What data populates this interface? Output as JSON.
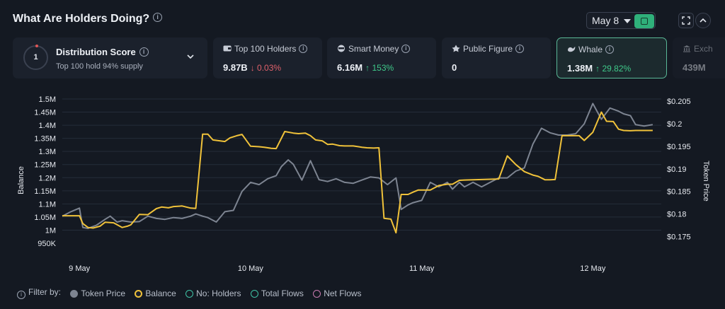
{
  "header": {
    "title": "What Are Holders Doing?",
    "date_label": "May 8"
  },
  "distribution": {
    "score": "1",
    "title": "Distribution Score",
    "subtitle": "Top 100 hold 94% supply"
  },
  "cards": [
    {
      "label": "Top 100 Holders",
      "value": "9.87B",
      "change": "↓ 0.03%",
      "direction": "down",
      "icon": "wallet-icon"
    },
    {
      "label": "Smart Money",
      "value": "6.16M",
      "change": "↑ 153%",
      "direction": "up",
      "icon": "smart-money-icon"
    },
    {
      "label": "Public Figure",
      "value": "0",
      "change": "",
      "direction": "",
      "icon": "public-figure-icon"
    },
    {
      "label": "Whale",
      "value": "1.38M",
      "change": "↑ 29.82%",
      "direction": "up",
      "icon": "whale-icon"
    },
    {
      "label": "Exch",
      "value": "439M",
      "change": "",
      "direction": "",
      "icon": "exchange-icon"
    }
  ],
  "legend": {
    "filter_label": "Filter by:",
    "items": [
      "Token Price",
      "Balance",
      "No: Holders",
      "Total Flows",
      "Net Flows"
    ]
  },
  "colors": {
    "token_price": "#7d8491",
    "balance": "#f0c23a",
    "accent_green": "#2fb07a",
    "up": "#3fca8a",
    "down": "#e0616b"
  },
  "chart_data": {
    "type": "line",
    "x_tick_labels": [
      "9 May",
      "10 May",
      "11 May",
      "12 May"
    ],
    "x_tick_positions": [
      0.5,
      10.5,
      20.5,
      30.5
    ],
    "x_range": [
      -0.5,
      34.5
    ],
    "ylabel_left": "Balance",
    "ylabel_right": "Token Price",
    "yticks_left": [
      "1.5M",
      "1.45M",
      "1.4M",
      "1.35M",
      "1.3M",
      "1.25M",
      "1.2M",
      "1.15M",
      "1.1M",
      "1.05M",
      "1M",
      "950K"
    ],
    "yticks_right": [
      "$0.205",
      "$0.2",
      "$0.195",
      "$0.19",
      "$0.185",
      "$0.18",
      "$0.175"
    ],
    "ylim_left": [
      950000,
      1500000
    ],
    "ylim_right": [
      0.1735,
      0.2055
    ],
    "series": [
      {
        "name": "Balance",
        "axis": "left",
        "x": [
          -0.5,
          0,
          0.5,
          0.7,
          1,
          1.3,
          1.7,
          2,
          2.5,
          3,
          3.3,
          3.5,
          4,
          4.5,
          5,
          5.3,
          5.7,
          6,
          6.5,
          7,
          7.3,
          7.7,
          8,
          8.3,
          9,
          9.3,
          9.7,
          10,
          10.5,
          11,
          11.3,
          11.7,
          12,
          12.5,
          13,
          13.3,
          13.7,
          14,
          14.3,
          14.7,
          15,
          15.3,
          15.7,
          16,
          16.5,
          17,
          17.3,
          17.7,
          18,
          18.3,
          18.7,
          19,
          19.3,
          19.7,
          20,
          20.3,
          20.7,
          21,
          21.5,
          22,
          22.3,
          22.7,
          23,
          23.5,
          24,
          24.5,
          25,
          25.5,
          26,
          26.5,
          27,
          27.3,
          27.7,
          28,
          28.3,
          28.7,
          29,
          29.3,
          29.7,
          30,
          30.5,
          31,
          31.3,
          31.7,
          32,
          32.3,
          32.7,
          33,
          33.5,
          34
        ],
        "y": [
          1055000,
          1055000,
          1055000,
          1025000,
          1010000,
          1008000,
          1015000,
          1030000,
          1028000,
          1010000,
          1015000,
          1020000,
          1060000,
          1059000,
          1082000,
          1088000,
          1085000,
          1090000,
          1092000,
          1084000,
          1083000,
          1366000,
          1366000,
          1344000,
          1338000,
          1352000,
          1360000,
          1365000,
          1320000,
          1318000,
          1316000,
          1312000,
          1311000,
          1376000,
          1370000,
          1368000,
          1370000,
          1360000,
          1344000,
          1340000,
          1327000,
          1328000,
          1322000,
          1321000,
          1321000,
          1316000,
          1314000,
          1313000,
          1314000,
          1045000,
          1042000,
          990000,
          1136000,
          1136000,
          1145000,
          1153000,
          1153000,
          1153000,
          1170000,
          1175000,
          1175000,
          1190000,
          1191000,
          1192000,
          1193000,
          1194000,
          1195000,
          1283000,
          1250000,
          1223000,
          1210000,
          1205000,
          1192000,
          1192000,
          1193000,
          1360000,
          1360000,
          1360000,
          1360000,
          1342000,
          1373000,
          1450000,
          1415000,
          1414000,
          1385000,
          1380000,
          1379000,
          1380000,
          1380000,
          1380000
        ]
      },
      {
        "name": "Token Price",
        "axis": "right",
        "x": [
          -0.5,
          0,
          0.5,
          0.7,
          1,
          1.5,
          2,
          2.3,
          2.7,
          3,
          3.5,
          4,
          4.5,
          5,
          5.5,
          6,
          6.5,
          7,
          7.3,
          7.7,
          8,
          8.5,
          9,
          9.5,
          10,
          10.5,
          11,
          11.5,
          12,
          12.3,
          12.7,
          13,
          13.5,
          14,
          14.5,
          15,
          15.5,
          16,
          16.5,
          17,
          17.5,
          18,
          18.5,
          19,
          19.3,
          19.7,
          20,
          20.5,
          21,
          21.5,
          22,
          22.3,
          22.7,
          23,
          23.5,
          24,
          24.5,
          25,
          25.5,
          26,
          26.5,
          27,
          27.5,
          28,
          28.5,
          29,
          29.5,
          30,
          30.5,
          31,
          31.5,
          32,
          32.3,
          32.7,
          33,
          33.5,
          34
        ],
        "y": [
          0.1795,
          0.1805,
          0.1813,
          0.177,
          0.1768,
          0.1775,
          0.1788,
          0.1795,
          0.1782,
          0.1785,
          0.1782,
          0.1783,
          0.1795,
          0.179,
          0.1788,
          0.1792,
          0.179,
          0.1795,
          0.18,
          0.1795,
          0.1792,
          0.1782,
          0.1805,
          0.1808,
          0.185,
          0.187,
          0.1865,
          0.1878,
          0.1885,
          0.1905,
          0.192,
          0.191,
          0.1875,
          0.1918,
          0.1876,
          0.1872,
          0.1878,
          0.187,
          0.1868,
          0.1875,
          0.1882,
          0.188,
          0.1865,
          0.188,
          0.181,
          0.182,
          0.1825,
          0.183,
          0.187,
          0.186,
          0.187,
          0.1855,
          0.187,
          0.186,
          0.187,
          0.186,
          0.187,
          0.188,
          0.188,
          0.1895,
          0.1902,
          0.1955,
          0.199,
          0.198,
          0.1975,
          0.1975,
          0.1978,
          0.2,
          0.2045,
          0.201,
          0.2035,
          0.2028,
          0.2022,
          0.2018,
          0.1998,
          0.1995,
          0.1998
        ]
      }
    ]
  }
}
